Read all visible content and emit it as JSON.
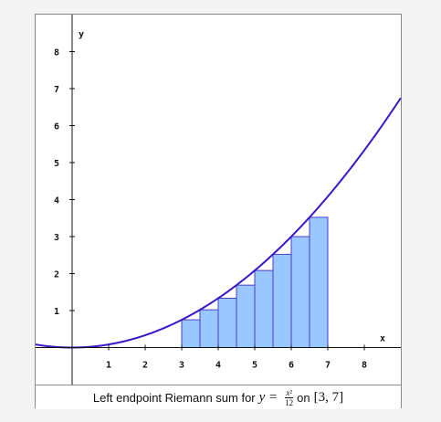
{
  "chart_data": {
    "type": "bar",
    "x_axis_label": "x",
    "y_axis_label": "y",
    "xlim": [
      -1,
      9
    ],
    "ylim": [
      -1,
      9
    ],
    "x_ticks": [
      1,
      2,
      3,
      4,
      5,
      6,
      7,
      8
    ],
    "y_ticks": [
      1,
      2,
      3,
      4,
      5,
      6,
      7,
      8
    ],
    "function": "x^2/12",
    "interval": [
      3,
      7
    ],
    "n_subintervals": 8,
    "bars": [
      {
        "x_left": 3.0,
        "x_right": 3.5,
        "height": 0.75
      },
      {
        "x_left": 3.5,
        "x_right": 4.0,
        "height": 1.0208
      },
      {
        "x_left": 4.0,
        "x_right": 4.5,
        "height": 1.3333
      },
      {
        "x_left": 4.5,
        "x_right": 5.0,
        "height": 1.6875
      },
      {
        "x_left": 5.0,
        "x_right": 5.5,
        "height": 2.0833
      },
      {
        "x_left": 5.5,
        "x_right": 6.0,
        "height": 2.5208
      },
      {
        "x_left": 6.0,
        "x_right": 6.5,
        "height": 3.0
      },
      {
        "x_left": 6.5,
        "x_right": 7.0,
        "height": 3.5208
      }
    ],
    "colors": {
      "bar_fill": "#99c7ff",
      "bar_stroke": "#4a3fc9",
      "curve": "#3a16c8",
      "axis": "#111111"
    }
  },
  "caption": {
    "prefix": "Left endpoint Riemann sum for",
    "lhs": "y =",
    "numerator": "x²",
    "denominator": "12",
    "on_word": "on",
    "interval_text": "[3, 7]"
  }
}
